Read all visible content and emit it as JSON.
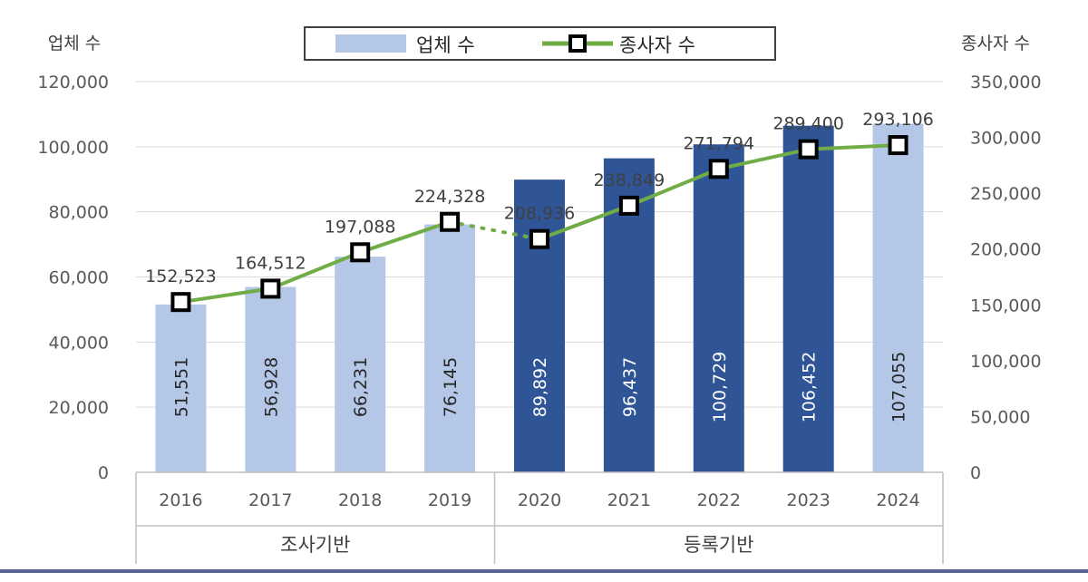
{
  "chart_data": {
    "type": "bar",
    "categories": [
      "2016",
      "2017",
      "2018",
      "2019",
      "2020",
      "2021",
      "2022",
      "2023",
      "2024"
    ],
    "groups": [
      {
        "label": "조사기반",
        "categories": [
          "2016",
          "2017",
          "2018",
          "2019"
        ]
      },
      {
        "label": "등록기반",
        "categories": [
          "2020",
          "2021",
          "2022",
          "2023",
          "2024"
        ]
      }
    ],
    "series": [
      {
        "name": "업체 수",
        "type": "bar",
        "axis": "left",
        "values": [
          51551,
          56928,
          66231,
          76145,
          89892,
          96437,
          100729,
          106452,
          107055
        ],
        "labels": [
          "51,551",
          "56,928",
          "66,231",
          "76,145",
          "89,892",
          "96,437",
          "100,729",
          "106,452",
          "107,055"
        ],
        "colors": [
          "#b4c7e7",
          "#b4c7e7",
          "#b4c7e7",
          "#b4c7e7",
          "#2f5597",
          "#2f5597",
          "#2f5597",
          "#2f5597",
          "#b4c7e7"
        ]
      },
      {
        "name": "종사자 수",
        "type": "line",
        "axis": "right",
        "values": [
          152523,
          164512,
          197088,
          224328,
          208936,
          238849,
          271794,
          289400,
          293106
        ],
        "labels": [
          "152,523",
          "164,512",
          "197,088",
          "224,328",
          "208,936",
          "238,849",
          "271,794",
          "289,400",
          "293,106"
        ],
        "color": "#70ad47",
        "dotted_segment_after": "2019"
      }
    ],
    "left_axis": {
      "title": "업체 수",
      "ylim": [
        0,
        120000
      ],
      "ticks": [
        "0",
        "20,000",
        "40,000",
        "60,000",
        "80,000",
        "100,000",
        "120,000"
      ]
    },
    "right_axis": {
      "title": "종사자 수",
      "ylim": [
        0,
        350000
      ],
      "ticks": [
        "0",
        "50,000",
        "100,000",
        "150,000",
        "200,000",
        "250,000",
        "300,000",
        "350,000"
      ]
    },
    "grid": true,
    "legend_position": "top-center"
  }
}
